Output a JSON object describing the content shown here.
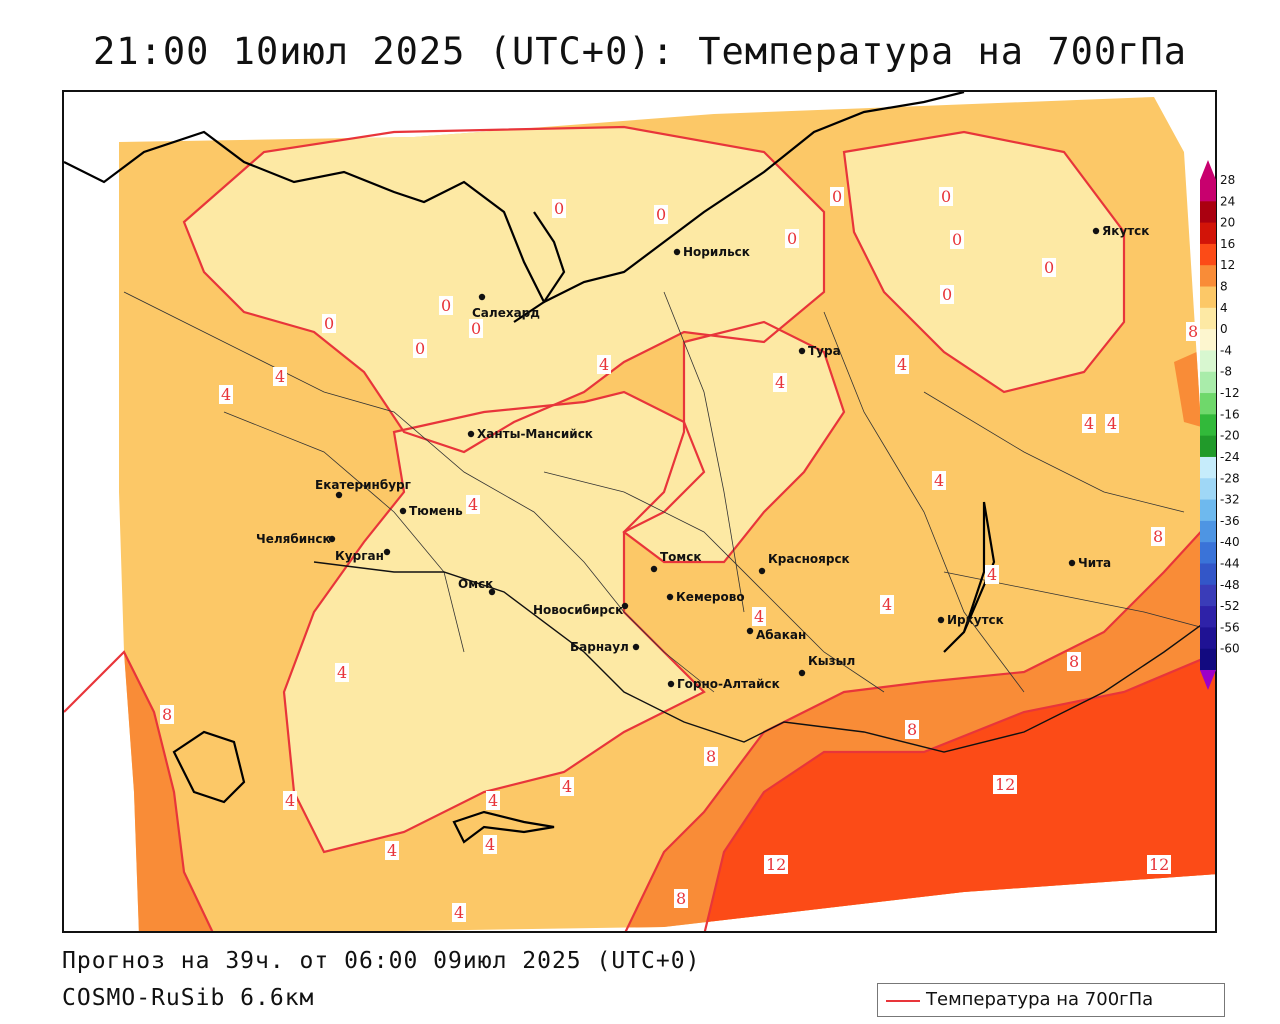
{
  "title": "21:00 10июл 2025 (UTC+0): Температура на 700гПа",
  "forecast": "Прогноз на 39ч. от 06:00 09июл 2025 (UTC+0)",
  "model": "COSMO-RuSib 6.6км",
  "legend_line_label": "Температура на 700гПа",
  "colors": {
    "contour": "#e8353a",
    "zone_0_4": "#fde9a4",
    "zone_4_8": "#fcc867",
    "zone_8_12": "#f98c37",
    "zone_12_16": "#fc4b17",
    "coast": "#000000"
  },
  "colorbar": [
    {
      "label": "28",
      "color": "#c8006e"
    },
    {
      "label": "24",
      "color": "#aa0010"
    },
    {
      "label": "20",
      "color": "#d21408"
    },
    {
      "label": "16",
      "color": "#fc4b17"
    },
    {
      "label": "12",
      "color": "#f98c37"
    },
    {
      "label": "8",
      "color": "#fcc867"
    },
    {
      "label": "4",
      "color": "#fde9a4"
    },
    {
      "label": "0",
      "color": "#fdf6cf"
    },
    {
      "label": "-4",
      "color": "#d8f7d0"
    },
    {
      "label": "-8",
      "color": "#a9ecaa"
    },
    {
      "label": "-12",
      "color": "#6fd86b"
    },
    {
      "label": "-16",
      "color": "#32b93a"
    },
    {
      "label": "-20",
      "color": "#219a2a"
    },
    {
      "label": "-24",
      "color": "#c6ecfb"
    },
    {
      "label": "-28",
      "color": "#9fd7f6"
    },
    {
      "label": "-32",
      "color": "#6eb9ee"
    },
    {
      "label": "-36",
      "color": "#4e95e3"
    },
    {
      "label": "-40",
      "color": "#3a73d8"
    },
    {
      "label": "-44",
      "color": "#3356c8"
    },
    {
      "label": "-48",
      "color": "#3a3cb8"
    },
    {
      "label": "-52",
      "color": "#2e22a8"
    },
    {
      "label": "-56",
      "color": "#1f1294"
    },
    {
      "label": "-60",
      "color": "#120a80"
    }
  ],
  "cities": [
    {
      "name": "Якутск"
    },
    {
      "name": "Норильск"
    },
    {
      "name": "Салехард"
    },
    {
      "name": "Тура"
    },
    {
      "name": "Ханты-Мансийск"
    },
    {
      "name": "Екатеринбург"
    },
    {
      "name": "Тюмень"
    },
    {
      "name": "Челябинск"
    },
    {
      "name": "Курган"
    },
    {
      "name": "Омск"
    },
    {
      "name": "Новосибирск"
    },
    {
      "name": "Томск"
    },
    {
      "name": "Кемерово"
    },
    {
      "name": "Красноярск"
    },
    {
      "name": "Абакан"
    },
    {
      "name": "Барнаул"
    },
    {
      "name": "Горно-Алтайск"
    },
    {
      "name": "Кызыл"
    },
    {
      "name": "Иркутск"
    },
    {
      "name": "Чита"
    }
  ],
  "contour_labels": [
    "0",
    "0",
    "0",
    "0",
    "0",
    "0",
    "0",
    "0",
    "0",
    "0",
    "0",
    "0",
    "4",
    "4",
    "4",
    "4",
    "4",
    "4",
    "4",
    "4",
    "4",
    "4",
    "4",
    "4",
    "4",
    "4",
    "4",
    "4",
    "4",
    "4",
    "4",
    "8",
    "8",
    "8",
    "8",
    "8",
    "8",
    "8",
    "12",
    "12",
    "12"
  ]
}
